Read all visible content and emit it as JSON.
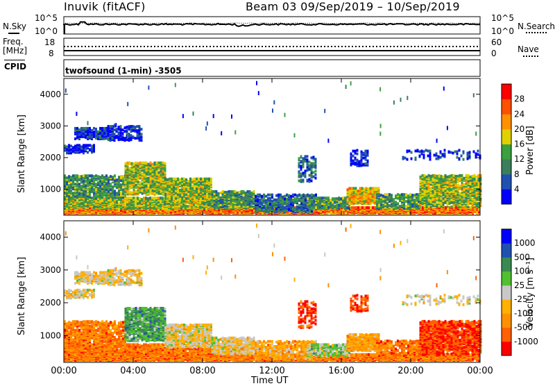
{
  "header": {
    "title": "Inuvik (fitACF)",
    "beam_date": "Beam 03  09/Sep/2019 – 10/Sep/2019"
  },
  "noise_panel": {
    "left_label": "N.Sky",
    "left_ticks": [
      "10^5",
      "10^0"
    ],
    "right_ticks": [
      "10^5",
      "10^0"
    ],
    "right_label": "N.Search"
  },
  "freq_panel": {
    "left_label_1": "Freq.",
    "left_label_2": "[MHz]",
    "left_ticks": [
      "18",
      "8"
    ],
    "right_ticks": [
      "60",
      "0"
    ],
    "right_label": "Nave",
    "cpid_label": "CPID"
  },
  "cpid_text": "twofsound (1-min) -3505",
  "colors": {
    "power": [
      "#0000ff",
      "#2050b0",
      "#3a7f5a",
      "#3aa040",
      "#e0d000",
      "#ff9000",
      "#ff5000",
      "#ff0000"
    ],
    "velocity": [
      "#ff0000",
      "#ff6000",
      "#ff9000",
      "#ffb000",
      "#c8c8c8",
      "#50c030",
      "#3a8a50",
      "#2050b0",
      "#0000ff"
    ]
  },
  "chart_data": [
    {
      "type": "heatmap",
      "title": "",
      "ylabel": "Slant Range [km]",
      "xlabel": "",
      "y_ticks": [
        "1000",
        "2000",
        "3000",
        "4000"
      ],
      "ylim": [
        180,
        4500
      ],
      "x_ticks": [
        "00:00",
        "04:00",
        "08:00",
        "12:00",
        "16:00",
        "20:00",
        "00:00"
      ],
      "colorbar_label": "Power [dB]",
      "colorbar_ticks": [
        "4",
        "8",
        "12",
        "16",
        "20",
        "24",
        "28"
      ],
      "colorbar_range": [
        0,
        30
      ]
    },
    {
      "type": "heatmap",
      "title": "",
      "ylabel": "Slant Range [km]",
      "xlabel": "Time UT",
      "y_ticks": [
        "1000",
        "2000",
        "3000",
        "4000"
      ],
      "ylim": [
        180,
        4500
      ],
      "x_ticks": [
        "00:00",
        "04:00",
        "08:00",
        "12:00",
        "16:00",
        "20:00",
        "00:00"
      ],
      "colorbar_label": "Velocity [m s⁻¹]",
      "colorbar_ticks": [
        "1000",
        "500",
        "100",
        "25",
        "-25",
        "-100",
        "-500",
        "-1000"
      ]
    }
  ]
}
